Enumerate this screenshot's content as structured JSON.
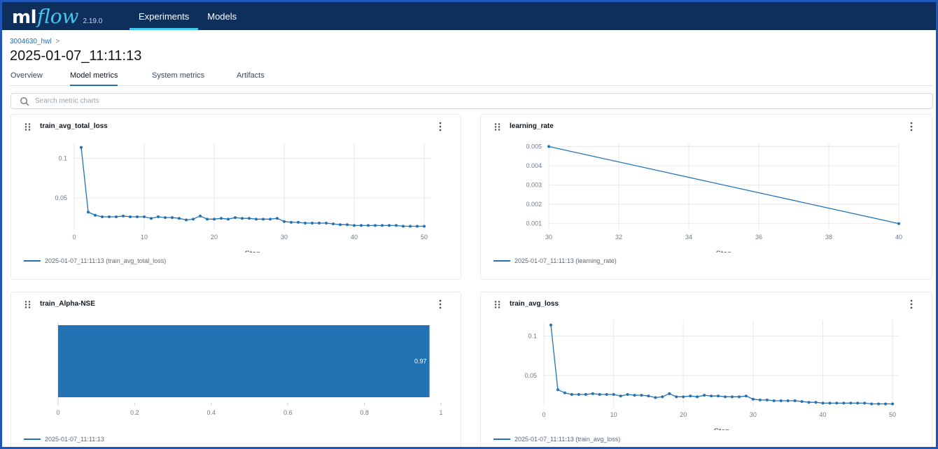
{
  "app": {
    "logo_primary": "ml",
    "logo_secondary": "flow",
    "version": "2.19.0",
    "accent_color": "#43c9ed",
    "header_color": "#0e2e5c",
    "nav": [
      {
        "label": "Experiments",
        "active": true
      },
      {
        "label": "Models",
        "active": false
      }
    ]
  },
  "breadcrumb": {
    "experiment": "3004630_hwl",
    "separator": ">"
  },
  "run": {
    "title": "2025-01-07_11:11:13"
  },
  "tabs": [
    {
      "label": "Overview",
      "active": false
    },
    {
      "label": "Model metrics",
      "active": true
    },
    {
      "label": "System metrics",
      "active": false
    },
    {
      "label": "Artifacts",
      "active": false
    }
  ],
  "search": {
    "placeholder": "Search metric charts",
    "value": "",
    "icon": "search-icon"
  },
  "icons": {
    "drag": "drag-handle-icon",
    "menu": "kebab-menu-icon"
  },
  "series_color": "#2272b4",
  "chart_data": [
    {
      "type": "line",
      "title": "train_avg_total_loss",
      "xlabel": "Step",
      "ylabel": "",
      "xlim": [
        0,
        51
      ],
      "ylim": [
        0.01,
        0.12
      ],
      "xticks": [
        0,
        10,
        20,
        30,
        40,
        50
      ],
      "yticks": [
        0.05,
        0.1
      ],
      "ytick_labels": [
        "0.05",
        "0.1"
      ],
      "legend": "2025-01-07_11:11:13 (train_avg_total_loss)",
      "x": [
        1,
        2,
        3,
        4,
        5,
        6,
        7,
        8,
        9,
        10,
        11,
        12,
        13,
        14,
        15,
        16,
        17,
        18,
        19,
        20,
        21,
        22,
        23,
        24,
        25,
        26,
        27,
        28,
        29,
        30,
        31,
        32,
        33,
        34,
        35,
        36,
        37,
        38,
        39,
        40,
        41,
        42,
        43,
        44,
        45,
        46,
        47,
        48,
        49,
        50
      ],
      "values": [
        0.114,
        0.032,
        0.028,
        0.026,
        0.026,
        0.026,
        0.027,
        0.026,
        0.026,
        0.026,
        0.024,
        0.026,
        0.025,
        0.025,
        0.024,
        0.022,
        0.023,
        0.027,
        0.023,
        0.023,
        0.024,
        0.023,
        0.025,
        0.024,
        0.024,
        0.023,
        0.023,
        0.023,
        0.024,
        0.02,
        0.019,
        0.019,
        0.018,
        0.018,
        0.018,
        0.018,
        0.017,
        0.016,
        0.016,
        0.015,
        0.015,
        0.015,
        0.015,
        0.015,
        0.015,
        0.015,
        0.014,
        0.014,
        0.014,
        0.014
      ]
    },
    {
      "type": "line",
      "title": "learning_rate",
      "xlabel": "Step",
      "ylabel": "",
      "xlim": [
        30,
        40
      ],
      "ylim": [
        0.0007,
        0.0052
      ],
      "xticks": [
        30,
        32,
        34,
        36,
        38,
        40
      ],
      "yticks": [
        0.001,
        0.002,
        0.003,
        0.004,
        0.005
      ],
      "ytick_labels": [
        "0.001",
        "0.002",
        "0.003",
        "0.004",
        "0.005"
      ],
      "legend": "2025-01-07_11:11:13 (learning_rate)",
      "x": [
        30,
        40
      ],
      "values": [
        0.005,
        0.001
      ]
    },
    {
      "type": "bar",
      "orientation": "horizontal",
      "title": "train_Alpha-NSE",
      "xlabel": "",
      "ylabel": "",
      "xlim": [
        0,
        1
      ],
      "xticks": [
        0,
        0.2,
        0.4,
        0.6,
        0.8,
        1
      ],
      "xtick_labels": [
        "0",
        "0.2",
        "0.4",
        "0.6",
        "0.8",
        "1"
      ],
      "categories": [
        "2025-01-07_11:11:13"
      ],
      "values": [
        0.97
      ],
      "value_labels": [
        "0.97"
      ],
      "legend": "2025-01-07_11:11:13"
    },
    {
      "type": "line",
      "title": "train_avg_loss",
      "xlabel": "Step",
      "ylabel": "",
      "xlim": [
        0,
        51
      ],
      "ylim": [
        0.01,
        0.12
      ],
      "xticks": [
        0,
        10,
        20,
        30,
        40,
        50
      ],
      "yticks": [
        0.05,
        0.1
      ],
      "ytick_labels": [
        "0.05",
        "0.1"
      ],
      "legend": "2025-01-07_11:11:13 (train_avg_loss)",
      "x": [
        1,
        2,
        3,
        4,
        5,
        6,
        7,
        8,
        9,
        10,
        11,
        12,
        13,
        14,
        15,
        16,
        17,
        18,
        19,
        20,
        21,
        22,
        23,
        24,
        25,
        26,
        27,
        28,
        29,
        30,
        31,
        32,
        33,
        34,
        35,
        36,
        37,
        38,
        39,
        40,
        41,
        42,
        43,
        44,
        45,
        46,
        47,
        48,
        49,
        50
      ],
      "values": [
        0.114,
        0.032,
        0.028,
        0.026,
        0.026,
        0.026,
        0.027,
        0.026,
        0.026,
        0.026,
        0.024,
        0.026,
        0.025,
        0.025,
        0.024,
        0.022,
        0.023,
        0.027,
        0.023,
        0.023,
        0.024,
        0.023,
        0.025,
        0.024,
        0.024,
        0.023,
        0.023,
        0.023,
        0.024,
        0.02,
        0.019,
        0.019,
        0.018,
        0.018,
        0.018,
        0.018,
        0.017,
        0.016,
        0.016,
        0.015,
        0.015,
        0.015,
        0.015,
        0.015,
        0.015,
        0.015,
        0.014,
        0.014,
        0.014,
        0.014
      ]
    }
  ]
}
